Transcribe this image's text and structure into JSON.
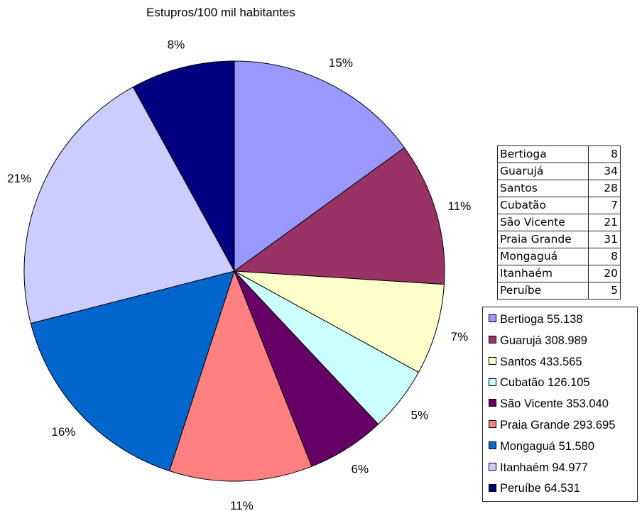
{
  "chart_data": {
    "type": "pie",
    "title": "Estupros/100 mil habitantes",
    "categories": [
      "Bertioga",
      "Guarujá",
      "Santos",
      "Cubatão",
      "São Vicente",
      "Praia Grande",
      "Mongaguá",
      "Itanhaém",
      "Peruíbe"
    ],
    "values": [
      15,
      11,
      7,
      5,
      6,
      11,
      16,
      21,
      8
    ],
    "value_labels": [
      "15%",
      "11%",
      "7%",
      "5%",
      "6%",
      "11%",
      "16%",
      "21%",
      "8%"
    ],
    "colors": [
      "#9999ff",
      "#993366",
      "#ffffcc",
      "#ccffff",
      "#660066",
      "#ff8080",
      "#0066cc",
      "#ccccff",
      "#000080"
    ],
    "legend": [
      {
        "label": "Bertioga 55.138"
      },
      {
        "label": "Guarujá 308.989"
      },
      {
        "label": "Santos 433.565"
      },
      {
        "label": "Cubatão 126.105"
      },
      {
        "label": "São Vicente 353.040"
      },
      {
        "label": "Praia Grande 293.695"
      },
      {
        "label": "Mongaguá 51.580"
      },
      {
        "label": "Itanhaém 94.977"
      },
      {
        "label": "Peruíbe 64.531"
      }
    ],
    "legend_position": "right",
    "table": [
      {
        "name": "Bertioga",
        "value": "8"
      },
      {
        "name": "Guarujá",
        "value": "34"
      },
      {
        "name": "Santos",
        "value": "28"
      },
      {
        "name": "Cubatão",
        "value": "7"
      },
      {
        "name": "São Vicente",
        "value": "21"
      },
      {
        "name": "Praia Grande",
        "value": "31"
      },
      {
        "name": "Mongaguá",
        "value": "8"
      },
      {
        "name": "Itanhaém",
        "value": "20"
      },
      {
        "name": "Peruíbe",
        "value": "5"
      }
    ]
  }
}
